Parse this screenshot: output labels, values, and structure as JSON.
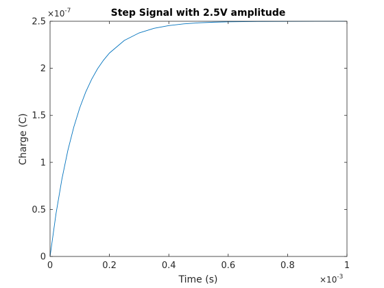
{
  "chart_data": {
    "type": "line",
    "title": "Step Signal with 2.5V amplitude",
    "xlabel": "Time (s)",
    "ylabel": "Charge (C)",
    "x_multiplier": {
      "base": "×10",
      "exponent": "-3"
    },
    "y_multiplier": {
      "base": "×10",
      "exponent": "-7"
    },
    "xlim": [
      0,
      0.001
    ],
    "ylim": [
      0,
      2.5e-07
    ],
    "x_ticks": [
      0,
      0.0002,
      0.0004,
      0.0006,
      0.0008,
      0.001
    ],
    "x_tick_labels": [
      "0",
      "0.2",
      "0.4",
      "0.6",
      "0.8",
      "1"
    ],
    "y_ticks": [
      0,
      5e-08,
      1e-07,
      1.5e-07,
      2e-07,
      2.5e-07
    ],
    "y_tick_labels": [
      "0",
      "0.5",
      "1",
      "1.5",
      "2",
      "2.5"
    ],
    "grid": false,
    "line_color": "#0072bd",
    "series": [
      {
        "x": [
          0,
          2e-05,
          4e-05,
          6e-05,
          8e-05,
          0.0001,
          0.00012,
          0.00014,
          0.00016,
          0.00018,
          0.0002,
          0.00025,
          0.0003,
          0.00035,
          0.0004,
          0.00045,
          0.0005,
          0.00055,
          0.0006,
          0.0007,
          0.0008,
          0.0009,
          0.001
        ],
        "values": [
          0,
          4.53e-08,
          8.24e-08,
          1.128e-07,
          1.376e-07,
          1.58e-07,
          1.747e-07,
          1.883e-07,
          1.995e-07,
          2.086e-07,
          2.162e-07,
          2.296e-07,
          2.376e-07,
          2.425e-07,
          2.454e-07,
          2.472e-07,
          2.483e-07,
          2.49e-07,
          2.494e-07,
          2.498e-07,
          2.499e-07,
          2.5e-07,
          2.5e-07
        ]
      }
    ]
  }
}
